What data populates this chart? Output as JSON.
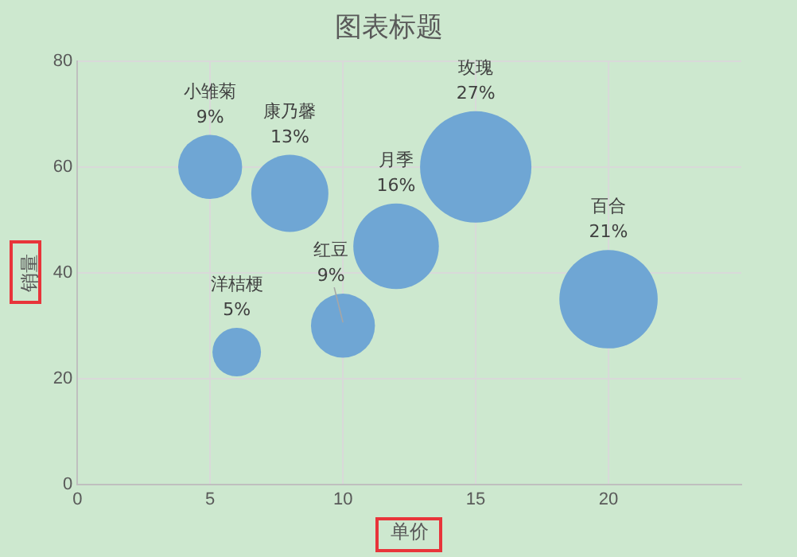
{
  "chart_data": {
    "type": "bubble",
    "title": "图表标题",
    "xlabel": "单价",
    "ylabel": "销量",
    "x": [
      5,
      8,
      6,
      10,
      12,
      15,
      20
    ],
    "values": [
      60,
      55,
      25,
      30,
      45,
      60,
      35
    ],
    "sizes": [
      0.33,
      0.48,
      0.19,
      0.33,
      0.59,
      1,
      0.78
    ],
    "value_labels": [
      "小雏菊\n9%",
      "康乃馨\n13%",
      "洋桔梗\n5%",
      "红豆\n9%",
      "月季\n16%",
      "玫瑰\n27%",
      "百合\n21%"
    ],
    "color": "#6fa6d4",
    "xlim": [
      0,
      25
    ],
    "xticks": [
      0,
      5,
      10,
      15,
      20
    ],
    "ylim": [
      0,
      80
    ],
    "yticks": [
      0,
      20,
      40,
      60,
      80
    ],
    "grid": true,
    "legend": false
  }
}
